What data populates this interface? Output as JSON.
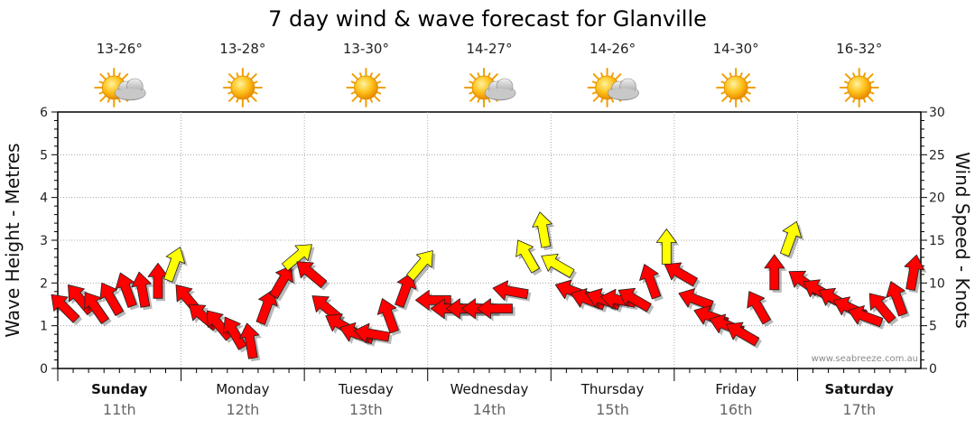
{
  "chart_data": {
    "type": "arrow-timeseries",
    "title": "7 day wind & wave forecast for Glanville",
    "y_left": {
      "label": "Wave Height - Metres",
      "range": [
        0,
        6
      ],
      "ticks": [
        "0",
        "1",
        "2",
        "3",
        "4",
        "5",
        "6"
      ]
    },
    "y_right": {
      "label": "Wind Speed - Knots",
      "range": [
        0,
        30
      ],
      "ticks": [
        "0",
        "5",
        "10",
        "15",
        "20",
        "25",
        "30"
      ]
    },
    "days": [
      {
        "name": "Sunday",
        "date": "11th",
        "temp": "13-26°",
        "weather": "partly-cloudy",
        "bold": true
      },
      {
        "name": "Monday",
        "date": "12th",
        "temp": "13-28°",
        "weather": "sunny",
        "bold": false
      },
      {
        "name": "Tuesday",
        "date": "13th",
        "temp": "13-30°",
        "weather": "sunny",
        "bold": false
      },
      {
        "name": "Wednesday",
        "date": "14th",
        "temp": "14-27°",
        "weather": "partly-cloudy",
        "bold": false
      },
      {
        "name": "Thursday",
        "date": "15th",
        "temp": "14-26°",
        "weather": "partly-cloudy",
        "bold": false
      },
      {
        "name": "Friday",
        "date": "16th",
        "temp": "14-30°",
        "weather": "sunny",
        "bold": false
      },
      {
        "name": "Saturday",
        "date": "17th",
        "temp": "16-32°",
        "weather": "sunny",
        "bold": true
      }
    ],
    "wind_series": {
      "name": "Wind speed (knots), 3-hourly",
      "values": [
        7,
        8,
        7,
        8,
        9,
        9,
        10,
        12,
        8,
        6,
        5,
        4,
        3,
        7,
        10,
        13,
        11,
        7,
        5,
        4,
        4,
        6,
        9,
        12,
        8,
        7,
        7,
        7,
        7,
        9,
        13,
        16,
        12,
        9,
        8,
        8,
        8,
        8,
        10,
        14,
        11,
        8,
        6,
        5,
        4,
        7,
        11,
        15,
        10,
        9,
        8,
        7,
        6,
        7,
        8,
        11
      ]
    },
    "wind_direction_deg": [
      135,
      140,
      145,
      150,
      160,
      170,
      180,
      200,
      140,
      130,
      140,
      150,
      170,
      200,
      210,
      230,
      130,
      130,
      120,
      110,
      100,
      160,
      200,
      220,
      90,
      90,
      90,
      90,
      90,
      100,
      150,
      170,
      120,
      110,
      110,
      110,
      100,
      120,
      160,
      180,
      120,
      110,
      110,
      110,
      120,
      150,
      180,
      200,
      125,
      120,
      120,
      115,
      110,
      140,
      160,
      190
    ],
    "color_scale": {
      "calm": "#ff0000",
      "moderate": "#ffff00",
      "threshold_knots": 12
    },
    "credit": "www.seabreeze.com.au"
  }
}
